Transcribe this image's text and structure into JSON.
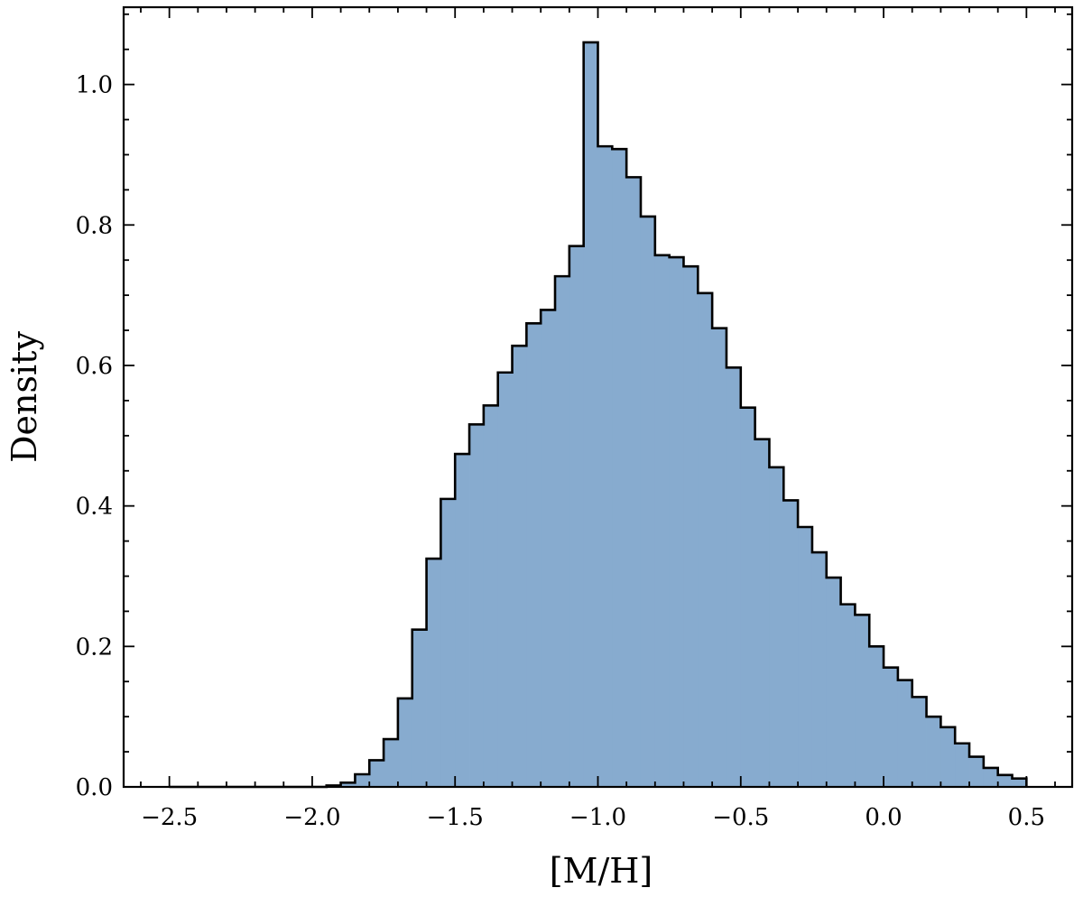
{
  "chart_data": {
    "type": "histogram",
    "xlabel": "[M/H]",
    "ylabel": "Density",
    "xlim": [
      -2.66,
      0.66
    ],
    "ylim": [
      0.0,
      1.11
    ],
    "x_ticks": [
      -2.5,
      -2.0,
      -1.5,
      -1.0,
      -0.5,
      0.0,
      0.5
    ],
    "x_tick_labels": [
      "−2.5",
      "−2.0",
      "−1.5",
      "−1.0",
      "−0.5",
      "0.0",
      "0.5"
    ],
    "y_ticks": [
      0.0,
      0.2,
      0.4,
      0.6,
      0.8,
      1.0
    ],
    "y_tick_labels": [
      "0.0",
      "0.2",
      "0.4",
      "0.6",
      "0.8",
      "1.0"
    ],
    "bin_start": -2.5,
    "bin_width": 0.05,
    "values": [
      0,
      0,
      0,
      0,
      0,
      0,
      0,
      0,
      0,
      0,
      0,
      0.002,
      0.006,
      0.018,
      0.038,
      0.068,
      0.126,
      0.224,
      0.325,
      0.41,
      0.474,
      0.516,
      0.543,
      0.59,
      0.628,
      0.66,
      0.679,
      0.727,
      0.77,
      1.06,
      0.912,
      0.908,
      0.868,
      0.812,
      0.757,
      0.754,
      0.741,
      0.703,
      0.653,
      0.597,
      0.54,
      0.495,
      0.455,
      0.408,
      0.37,
      0.334,
      0.298,
      0.26,
      0.245,
      0.2,
      0.17,
      0.152,
      0.128,
      0.1,
      0.085,
      0.062,
      0.043,
      0.027,
      0.017,
      0.012
    ],
    "fill_color": "#87abcf",
    "edge_color": "#000000",
    "grid": false
  }
}
